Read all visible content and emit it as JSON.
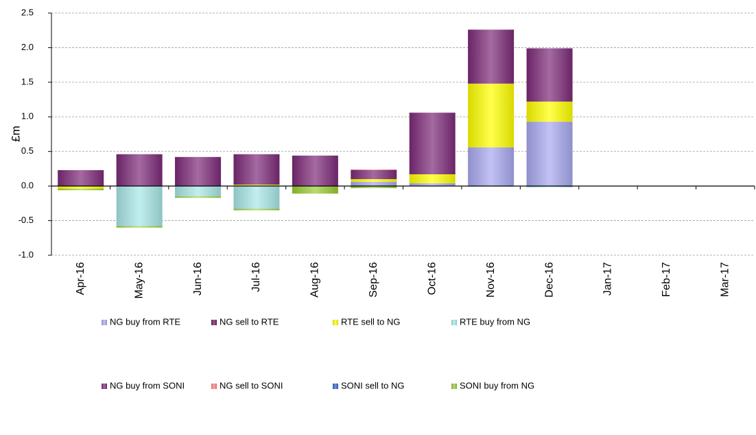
{
  "chart_data": {
    "type": "stacked-bar",
    "ylabel": "£m",
    "categories": [
      "Apr-16",
      "May-16",
      "Jun-16",
      "Jul-16",
      "Aug-16",
      "Sep-16",
      "Oct-16",
      "Nov-16",
      "Dec-16",
      "Jan-17",
      "Feb-17",
      "Mar-17"
    ],
    "series": [
      {
        "name": "NG buy from RTE",
        "color": "#a8a8f0",
        "values": [
          0,
          0,
          0,
          0,
          0,
          0.06,
          0.04,
          0.56,
          0.93,
          0,
          0,
          0
        ]
      },
      {
        "name": "NG sell to RTE",
        "color": "#6b1f5f",
        "values": [
          0,
          0,
          0,
          0,
          0,
          0,
          0,
          0,
          0,
          0,
          0,
          0
        ]
      },
      {
        "name": "RTE sell to NG",
        "color": "#ffff00",
        "values": [
          -0.04,
          0,
          0,
          0.02,
          0,
          0.04,
          0.13,
          0.92,
          0.29,
          0,
          0,
          0
        ]
      },
      {
        "name": "RTE buy from NG",
        "color": "#a8e6e6",
        "values": [
          0,
          -0.58,
          -0.15,
          -0.33,
          0,
          0,
          0,
          -0.01,
          -0.02,
          0,
          0,
          0
        ]
      },
      {
        "name": "NG buy from SONI",
        "color": "#7d2a78",
        "values": [
          0.23,
          0.46,
          0.42,
          0.44,
          0.44,
          0.13,
          0.89,
          0.78,
          0.77,
          0,
          0,
          0
        ]
      },
      {
        "name": "NG sell to SONI",
        "color": "#ff8080",
        "values": [
          0,
          0,
          0,
          0,
          0,
          0.01,
          0,
          0,
          0,
          0,
          0,
          0
        ]
      },
      {
        "name": "SONI sell to NG",
        "color": "#3366cc",
        "values": [
          0,
          0,
          0,
          0,
          0,
          0,
          0,
          0,
          0,
          0,
          0,
          0
        ]
      },
      {
        "name": "SONI buy from NG",
        "color": "#99cc33",
        "values": [
          -0.02,
          -0.02,
          -0.02,
          -0.02,
          -0.11,
          -0.03,
          0,
          0,
          0,
          0,
          0,
          0
        ]
      }
    ],
    "ylim": [
      -1.0,
      2.5
    ],
    "yticks": [
      {
        "value": -1.0,
        "label": "-1.0"
      },
      -0.5,
      {
        "value": 0.0,
        "label": "0.0"
      },
      0.5,
      {
        "value": 1.0,
        "label": "1.0"
      },
      1.5,
      {
        "value": 2.0,
        "label": "2.0"
      },
      2.5
    ],
    "grid": true
  }
}
